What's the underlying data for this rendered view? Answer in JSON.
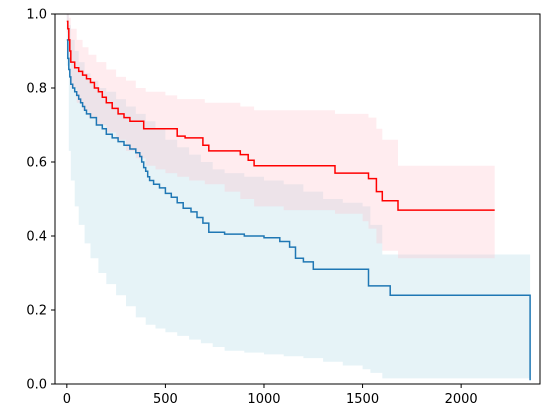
{
  "chart_data": {
    "type": "line",
    "title": "",
    "xlabel": "",
    "ylabel": "",
    "xlim": [
      -60,
      2400
    ],
    "ylim": [
      0,
      1
    ],
    "grid": false,
    "legend": "none",
    "x_ticks": [
      0,
      500,
      1000,
      1500,
      2000
    ],
    "y_ticks": [
      0.0,
      0.2,
      0.4,
      0.6,
      0.8,
      1.0
    ],
    "x_tick_labels": [
      "0",
      "500",
      "1000",
      "1500",
      "2000"
    ],
    "y_tick_labels": [
      "0.0",
      "0.2",
      "0.4",
      "0.6",
      "0.8",
      "1.0"
    ],
    "series": [
      {
        "color": "#1f77b4",
        "band_color": "#add8e6",
        "steps": [
          [
            0,
            0.93
          ],
          [
            5,
            0.88
          ],
          [
            10,
            0.85
          ],
          [
            15,
            0.83
          ],
          [
            20,
            0.81
          ],
          [
            30,
            0.8
          ],
          [
            40,
            0.79
          ],
          [
            50,
            0.78
          ],
          [
            60,
            0.77
          ],
          [
            70,
            0.76
          ],
          [
            80,
            0.75
          ],
          [
            90,
            0.74
          ],
          [
            100,
            0.73
          ],
          [
            120,
            0.72
          ],
          [
            150,
            0.7
          ],
          [
            180,
            0.69
          ],
          [
            200,
            0.675
          ],
          [
            230,
            0.665
          ],
          [
            260,
            0.655
          ],
          [
            290,
            0.645
          ],
          [
            320,
            0.635
          ],
          [
            350,
            0.625
          ],
          [
            370,
            0.615
          ],
          [
            380,
            0.6
          ],
          [
            390,
            0.585
          ],
          [
            400,
            0.575
          ],
          [
            410,
            0.56
          ],
          [
            420,
            0.55
          ],
          [
            440,
            0.54
          ],
          [
            470,
            0.53
          ],
          [
            500,
            0.515
          ],
          [
            530,
            0.505
          ],
          [
            560,
            0.49
          ],
          [
            590,
            0.475
          ],
          [
            630,
            0.465
          ],
          [
            660,
            0.45
          ],
          [
            690,
            0.435
          ],
          [
            720,
            0.41
          ],
          [
            800,
            0.405
          ],
          [
            900,
            0.4
          ],
          [
            1000,
            0.395
          ],
          [
            1080,
            0.385
          ],
          [
            1130,
            0.37
          ],
          [
            1160,
            0.34
          ],
          [
            1200,
            0.33
          ],
          [
            1250,
            0.31
          ],
          [
            1380,
            0.31
          ],
          [
            1440,
            0.31
          ],
          [
            1530,
            0.265
          ],
          [
            1640,
            0.24
          ],
          [
            1900,
            0.24
          ],
          [
            2350,
            0.24
          ],
          [
            2350,
            0.01
          ]
        ],
        "upper": [
          [
            0,
            1.0
          ],
          [
            10,
            0.97
          ],
          [
            20,
            0.93
          ],
          [
            40,
            0.9
          ],
          [
            60,
            0.87
          ],
          [
            90,
            0.84
          ],
          [
            120,
            0.82
          ],
          [
            160,
            0.8
          ],
          [
            200,
            0.79
          ],
          [
            250,
            0.77
          ],
          [
            300,
            0.75
          ],
          [
            350,
            0.73
          ],
          [
            400,
            0.71
          ],
          [
            450,
            0.69
          ],
          [
            500,
            0.66
          ],
          [
            560,
            0.64
          ],
          [
            620,
            0.62
          ],
          [
            680,
            0.6
          ],
          [
            740,
            0.58
          ],
          [
            800,
            0.57
          ],
          [
            900,
            0.56
          ],
          [
            1000,
            0.55
          ],
          [
            1100,
            0.54
          ],
          [
            1200,
            0.52
          ],
          [
            1300,
            0.5
          ],
          [
            1400,
            0.49
          ],
          [
            1500,
            0.48
          ],
          [
            1540,
            0.43
          ],
          [
            1600,
            0.35
          ],
          [
            2000,
            0.35
          ],
          [
            2350,
            0.35
          ]
        ],
        "lower": [
          [
            0,
            0.86
          ],
          [
            10,
            0.63
          ],
          [
            20,
            0.55
          ],
          [
            40,
            0.48
          ],
          [
            60,
            0.43
          ],
          [
            90,
            0.38
          ],
          [
            120,
            0.34
          ],
          [
            160,
            0.3
          ],
          [
            200,
            0.27
          ],
          [
            250,
            0.24
          ],
          [
            300,
            0.21
          ],
          [
            350,
            0.18
          ],
          [
            400,
            0.16
          ],
          [
            450,
            0.15
          ],
          [
            500,
            0.14
          ],
          [
            560,
            0.13
          ],
          [
            620,
            0.12
          ],
          [
            680,
            0.11
          ],
          [
            740,
            0.1
          ],
          [
            800,
            0.09
          ],
          [
            900,
            0.085
          ],
          [
            1000,
            0.08
          ],
          [
            1100,
            0.075
          ],
          [
            1200,
            0.07
          ],
          [
            1300,
            0.06
          ],
          [
            1400,
            0.05
          ],
          [
            1500,
            0.04
          ],
          [
            1540,
            0.03
          ],
          [
            1600,
            0.015
          ],
          [
            2000,
            0.015
          ],
          [
            2350,
            0.01
          ]
        ]
      },
      {
        "color": "#ff0000",
        "band_color": "#ffc0cb",
        "steps": [
          [
            0,
            0.98
          ],
          [
            5,
            0.96
          ],
          [
            10,
            0.93
          ],
          [
            15,
            0.9
          ],
          [
            20,
            0.87
          ],
          [
            40,
            0.855
          ],
          [
            60,
            0.845
          ],
          [
            80,
            0.835
          ],
          [
            100,
            0.825
          ],
          [
            120,
            0.815
          ],
          [
            140,
            0.8
          ],
          [
            160,
            0.79
          ],
          [
            180,
            0.775
          ],
          [
            200,
            0.76
          ],
          [
            230,
            0.745
          ],
          [
            260,
            0.73
          ],
          [
            290,
            0.72
          ],
          [
            320,
            0.71
          ],
          [
            380,
            0.71
          ],
          [
            390,
            0.69
          ],
          [
            500,
            0.69
          ],
          [
            550,
            0.69
          ],
          [
            560,
            0.67
          ],
          [
            600,
            0.665
          ],
          [
            680,
            0.665
          ],
          [
            690,
            0.645
          ],
          [
            720,
            0.63
          ],
          [
            880,
            0.62
          ],
          [
            920,
            0.605
          ],
          [
            950,
            0.59
          ],
          [
            1100,
            0.59
          ],
          [
            1360,
            0.57
          ],
          [
            1500,
            0.57
          ],
          [
            1530,
            0.555
          ],
          [
            1570,
            0.52
          ],
          [
            1600,
            0.495
          ],
          [
            1680,
            0.47
          ],
          [
            2170,
            0.47
          ]
        ],
        "upper": [
          [
            0,
            1.0
          ],
          [
            10,
            0.99
          ],
          [
            20,
            0.96
          ],
          [
            50,
            0.93
          ],
          [
            80,
            0.91
          ],
          [
            110,
            0.89
          ],
          [
            150,
            0.87
          ],
          [
            200,
            0.85
          ],
          [
            250,
            0.83
          ],
          [
            300,
            0.82
          ],
          [
            350,
            0.8
          ],
          [
            400,
            0.79
          ],
          [
            450,
            0.79
          ],
          [
            500,
            0.78
          ],
          [
            560,
            0.77
          ],
          [
            620,
            0.77
          ],
          [
            700,
            0.76
          ],
          [
            800,
            0.76
          ],
          [
            880,
            0.75
          ],
          [
            950,
            0.74
          ],
          [
            1100,
            0.74
          ],
          [
            1360,
            0.73
          ],
          [
            1500,
            0.73
          ],
          [
            1530,
            0.72
          ],
          [
            1570,
            0.69
          ],
          [
            1600,
            0.66
          ],
          [
            1680,
            0.59
          ],
          [
            2170,
            0.59
          ]
        ],
        "lower": [
          [
            0,
            0.95
          ],
          [
            10,
            0.87
          ],
          [
            20,
            0.8
          ],
          [
            50,
            0.76
          ],
          [
            80,
            0.74
          ],
          [
            110,
            0.72
          ],
          [
            150,
            0.7
          ],
          [
            200,
            0.68
          ],
          [
            250,
            0.66
          ],
          [
            300,
            0.63
          ],
          [
            350,
            0.61
          ],
          [
            400,
            0.59
          ],
          [
            450,
            0.58
          ],
          [
            500,
            0.57
          ],
          [
            560,
            0.56
          ],
          [
            620,
            0.55
          ],
          [
            700,
            0.54
          ],
          [
            800,
            0.52
          ],
          [
            880,
            0.5
          ],
          [
            950,
            0.48
          ],
          [
            1100,
            0.47
          ],
          [
            1360,
            0.46
          ],
          [
            1500,
            0.44
          ],
          [
            1530,
            0.42
          ],
          [
            1570,
            0.38
          ],
          [
            1600,
            0.36
          ],
          [
            1680,
            0.34
          ],
          [
            2170,
            0.34
          ]
        ]
      }
    ]
  }
}
